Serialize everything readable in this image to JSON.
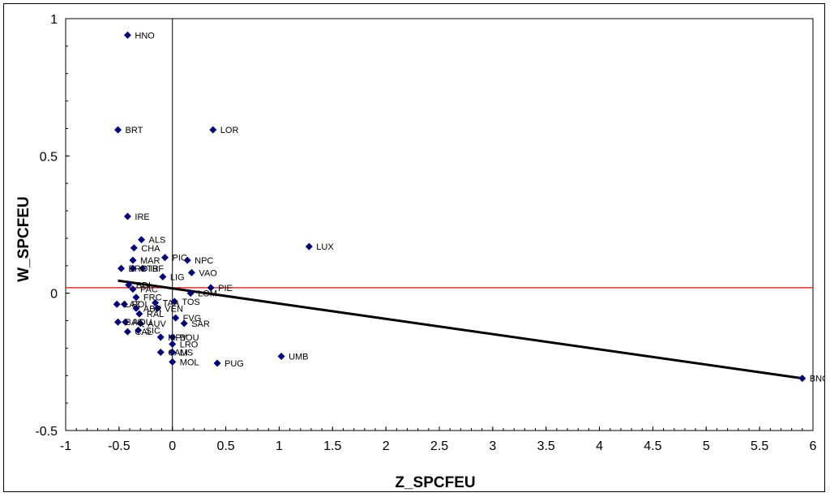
{
  "chart_data": {
    "type": "scatter",
    "xlabel": "Z_SPCFEU",
    "ylabel": "W_SPCFEU",
    "xlim": [
      -1,
      6
    ],
    "ylim": [
      -0.5,
      1
    ],
    "xticks": [
      "-1",
      "-0.5",
      "0",
      "0.5",
      "1",
      "1.5",
      "2",
      "2.5",
      "3",
      "3.5",
      "4",
      "4.5",
      "5",
      "5.5",
      "6"
    ],
    "yticks": [
      "-0.5",
      "0",
      "0.5",
      "1"
    ],
    "marker_color": "#000080",
    "hline": {
      "y": 0.02,
      "color": "#ff0000"
    },
    "trendline": {
      "x": [
        -0.51,
        5.9
      ],
      "y": [
        0.046,
        -0.31
      ],
      "color": "#000000"
    },
    "points": [
      {
        "label": "HNO",
        "x": -0.42,
        "y": 0.94
      },
      {
        "label": "BRT",
        "x": -0.51,
        "y": 0.595
      },
      {
        "label": "LOR",
        "x": 0.38,
        "y": 0.595
      },
      {
        "label": "IRE",
        "x": -0.42,
        "y": 0.28
      },
      {
        "label": "ALS",
        "x": -0.29,
        "y": 0.195
      },
      {
        "label": "LUX",
        "x": 1.28,
        "y": 0.17
      },
      {
        "label": "CHA",
        "x": -0.36,
        "y": 0.165
      },
      {
        "label": "MAR",
        "x": -0.37,
        "y": 0.12
      },
      {
        "label": "PIC",
        "x": -0.07,
        "y": 0.13
      },
      {
        "label": "NPC",
        "x": 0.14,
        "y": 0.12
      },
      {
        "label": "CTR",
        "x": -0.37,
        "y": 0.09
      },
      {
        "label": "IBF",
        "x": -0.28,
        "y": 0.09
      },
      {
        "label": "ERO",
        "x": -0.48,
        "y": 0.09
      },
      {
        "label": "VAO",
        "x": 0.18,
        "y": 0.075
      },
      {
        "label": "LIG",
        "x": -0.09,
        "y": 0.06
      },
      {
        "label": "BDL",
        "x": -0.41,
        "y": 0.03
      },
      {
        "label": "PIE",
        "x": 0.36,
        "y": 0.02
      },
      {
        "label": "PAC",
        "x": -0.37,
        "y": 0.015
      },
      {
        "label": "LOM",
        "x": 0.17,
        "y": 0.0
      },
      {
        "label": "FRC",
        "x": -0.34,
        "y": -0.015
      },
      {
        "label": "TAA",
        "x": -0.16,
        "y": -0.035
      },
      {
        "label": "TOS",
        "x": 0.02,
        "y": -0.03
      },
      {
        "label": "LAZ",
        "x": -0.52,
        "y": -0.04
      },
      {
        "label": "POI",
        "x": -0.45,
        "y": -0.04
      },
      {
        "label": "ABR",
        "x": -0.34,
        "y": -0.055
      },
      {
        "label": "VEN",
        "x": -0.14,
        "y": -0.055
      },
      {
        "label": "RAL",
        "x": -0.31,
        "y": -0.075
      },
      {
        "label": "FVG",
        "x": 0.03,
        "y": -0.09
      },
      {
        "label": "SAR",
        "x": 0.11,
        "y": -0.11
      },
      {
        "label": "BAS",
        "x": -0.51,
        "y": -0.105
      },
      {
        "label": "AQU",
        "x": -0.44,
        "y": -0.105
      },
      {
        "label": "AUV",
        "x": -0.3,
        "y": -0.11
      },
      {
        "label": "CAL",
        "x": -0.42,
        "y": -0.14
      },
      {
        "label": "SIC",
        "x": -0.32,
        "y": -0.135
      },
      {
        "label": "MPY",
        "x": -0.11,
        "y": -0.16
      },
      {
        "label": "BOU",
        "x": 0.0,
        "y": -0.16
      },
      {
        "label": "LRO",
        "x": 0.0,
        "y": -0.185
      },
      {
        "label": "CAM",
        "x": -0.11,
        "y": -0.215
      },
      {
        "label": "LIS",
        "x": 0.0,
        "y": -0.215
      },
      {
        "label": "UMB",
        "x": 1.02,
        "y": -0.23
      },
      {
        "label": "PUG",
        "x": 0.42,
        "y": -0.255
      },
      {
        "label": "MOL",
        "x": 0.0,
        "y": -0.25
      },
      {
        "label": "BNO",
        "x": 5.9,
        "y": -0.31
      }
    ]
  }
}
